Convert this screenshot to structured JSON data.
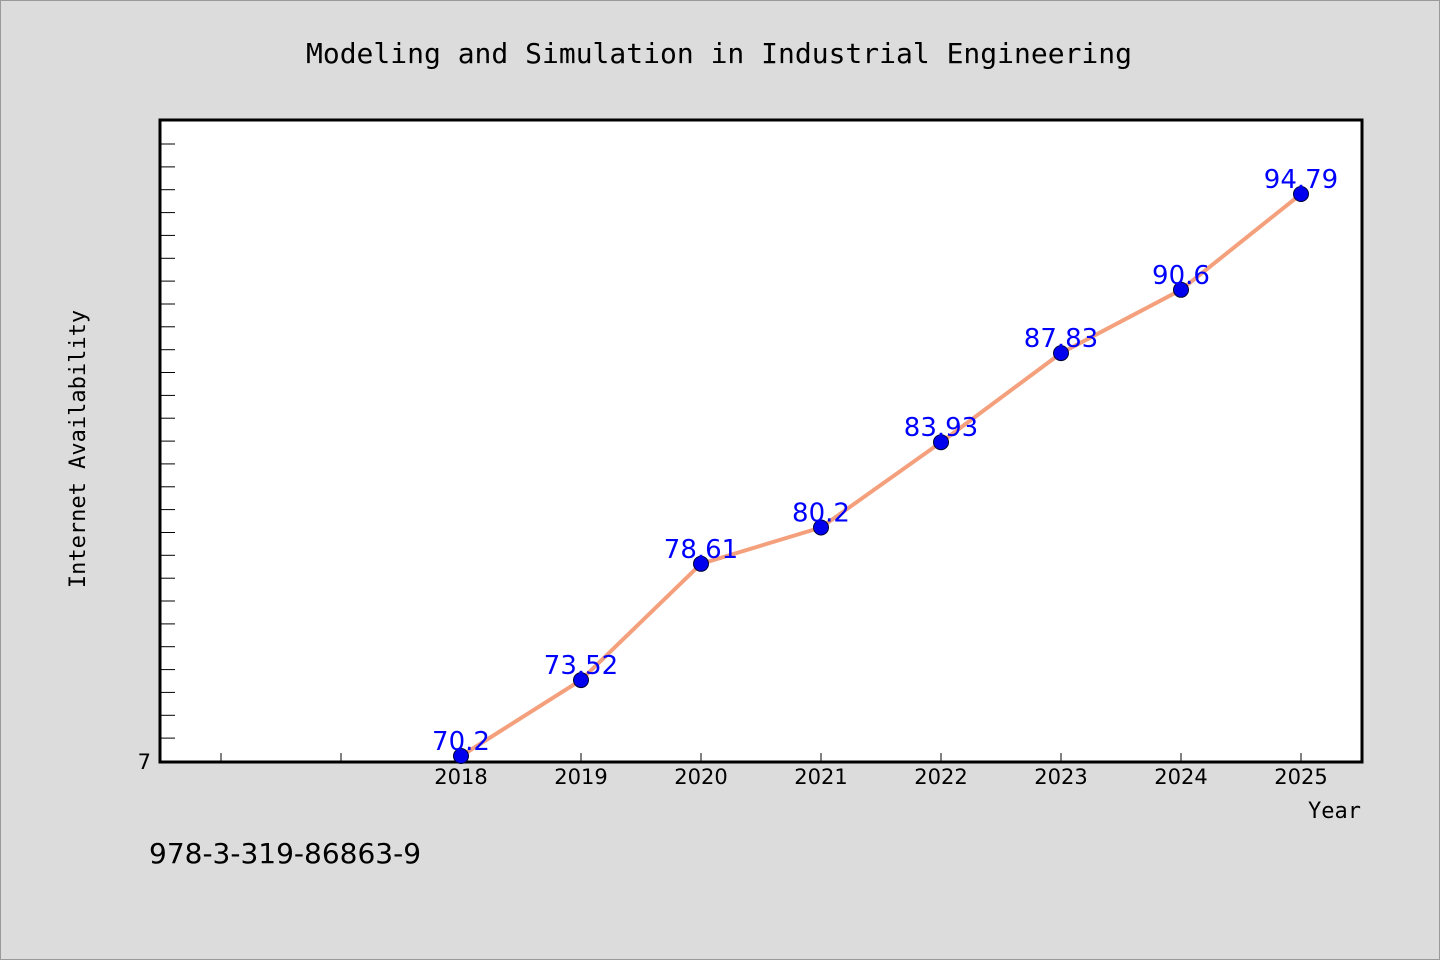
{
  "chart_data": {
    "type": "line",
    "title": "Modeling and Simulation in Industrial Engineering",
    "xlabel": "Year",
    "ylabel": "Internet Availability",
    "y_tick_labels": [
      "7"
    ],
    "x": [
      "2018",
      "2019",
      "2020",
      "2021",
      "2022",
      "2023",
      "2024",
      "2025"
    ],
    "series": [
      {
        "values": [
          70.2,
          73.52,
          78.61,
          80.2,
          83.93,
          87.83,
          90.6,
          94.79
        ],
        "labels": [
          "70.2",
          "73.52",
          "78.61",
          "80.2",
          "83.93",
          "87.83",
          "90.6",
          "94.79"
        ]
      }
    ],
    "grid": false,
    "colors": {
      "line": "#f4a07c",
      "marker": "#0000ee",
      "data_label": "#0000ff",
      "plot_bg": "#ffffff",
      "page_bg": "#dcdcdc"
    }
  },
  "footer": {
    "code": "978-3-319-86863-9"
  }
}
